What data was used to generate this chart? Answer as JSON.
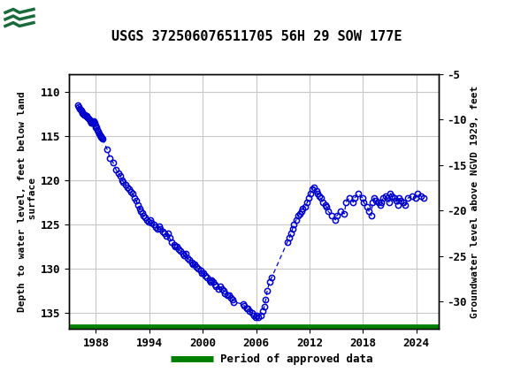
{
  "title": "USGS 372506076511705 56H 29 SOW 177E",
  "ylabel_left": "Depth to water level, feet below land\n surface",
  "ylabel_right": "Groundwater level above NGVD 1929, feet",
  "ylim_left": [
    136.8,
    108.0
  ],
  "ylim_right": [
    -33.0,
    -5.0
  ],
  "xlim": [
    1985.0,
    2026.5
  ],
  "xticks": [
    1988,
    1994,
    2000,
    2006,
    2012,
    2018,
    2024
  ],
  "yticks_left": [
    110,
    115,
    120,
    125,
    130,
    135
  ],
  "yticks_right": [
    -5,
    -10,
    -15,
    -20,
    -25,
    -30
  ],
  "background_color": "#ffffff",
  "plot_bg_color": "#ffffff",
  "grid_color": "#c8c8c8",
  "line_color": "#0000cc",
  "marker_color": "#0000cc",
  "header_color": "#1a6b3c",
  "legend_line_color": "#008000",
  "legend_text": "Period of approved data",
  "data_x": [
    1986.0,
    1986.08,
    1986.17,
    1986.25,
    1986.33,
    1986.42,
    1986.5,
    1986.58,
    1986.67,
    1986.75,
    1986.83,
    1986.92,
    1987.0,
    1987.08,
    1987.17,
    1987.25,
    1987.33,
    1987.42,
    1987.5,
    1987.58,
    1987.67,
    1987.75,
    1987.83,
    1987.92,
    1988.0,
    1988.08,
    1988.17,
    1988.25,
    1988.33,
    1988.42,
    1988.5,
    1988.58,
    1988.67,
    1988.75,
    1989.25,
    1989.58,
    1989.92,
    1990.25,
    1990.5,
    1990.75,
    1990.92,
    1991.08,
    1991.33,
    1991.5,
    1991.75,
    1991.92,
    1992.08,
    1992.33,
    1992.5,
    1992.75,
    1992.92,
    1993.0,
    1993.17,
    1993.33,
    1993.5,
    1993.75,
    1993.92,
    1994.08,
    1994.25,
    1994.5,
    1994.75,
    1994.92,
    1995.08,
    1995.25,
    1995.5,
    1995.75,
    1995.92,
    1996.08,
    1996.25,
    1996.5,
    1996.75,
    1996.92,
    1997.08,
    1997.25,
    1997.5,
    1997.75,
    1997.92,
    1998.08,
    1998.25,
    1998.5,
    1998.75,
    1998.92,
    1999.08,
    1999.25,
    1999.5,
    1999.75,
    1999.92,
    2000.08,
    2000.25,
    2000.5,
    2000.75,
    2000.92,
    2001.0,
    2001.17,
    2001.33,
    2001.5,
    2001.75,
    2002.0,
    2002.17,
    2002.33,
    2002.5,
    2002.75,
    2003.0,
    2003.17,
    2003.33,
    2003.5,
    2004.5,
    2004.67,
    2004.92,
    2005.08,
    2005.25,
    2005.5,
    2005.75,
    2005.92,
    2006.08,
    2006.25,
    2006.5,
    2006.75,
    2006.92,
    2007.08,
    2007.25,
    2007.5,
    2007.75,
    2009.5,
    2009.75,
    2009.92,
    2010.08,
    2010.25,
    2010.5,
    2010.75,
    2010.92,
    2011.08,
    2011.25,
    2011.5,
    2011.75,
    2011.92,
    2012.08,
    2012.25,
    2012.5,
    2012.75,
    2012.92,
    2013.08,
    2013.25,
    2013.5,
    2013.75,
    2013.92,
    2014.08,
    2014.5,
    2014.92,
    2015.08,
    2015.5,
    2015.92,
    2016.08,
    2016.5,
    2016.92,
    2017.08,
    2017.5,
    2017.92,
    2018.08,
    2018.5,
    2018.67,
    2018.92,
    2019.08,
    2019.25,
    2019.5,
    2019.75,
    2019.92,
    2020.08,
    2020.25,
    2020.5,
    2020.75,
    2020.92,
    2021.08,
    2021.25,
    2021.5,
    2021.75,
    2021.92,
    2022.08,
    2022.25,
    2022.5,
    2022.75,
    2023.08,
    2023.5,
    2023.92,
    2024.08,
    2024.5,
    2024.83
  ],
  "data_y": [
    111.5,
    111.7,
    111.9,
    112.0,
    112.1,
    112.3,
    112.4,
    112.5,
    112.6,
    112.6,
    112.7,
    112.7,
    112.8,
    112.9,
    113.0,
    113.1,
    113.3,
    113.4,
    113.5,
    113.5,
    113.4,
    113.3,
    113.5,
    113.8,
    114.0,
    114.0,
    114.3,
    114.5,
    114.7,
    114.9,
    115.0,
    115.1,
    115.2,
    115.3,
    116.5,
    117.5,
    118.0,
    118.8,
    119.2,
    119.5,
    120.0,
    120.2,
    120.5,
    120.8,
    121.0,
    121.3,
    121.5,
    122.0,
    122.3,
    122.8,
    123.2,
    123.5,
    123.7,
    124.0,
    124.2,
    124.5,
    124.7,
    124.5,
    124.8,
    125.0,
    125.3,
    125.5,
    125.2,
    125.5,
    125.8,
    126.0,
    126.3,
    126.0,
    126.5,
    127.0,
    127.3,
    127.5,
    127.5,
    127.8,
    128.0,
    128.3,
    128.5,
    128.3,
    128.8,
    129.0,
    129.3,
    129.5,
    129.5,
    129.8,
    130.0,
    130.2,
    130.5,
    130.5,
    130.8,
    131.0,
    131.3,
    131.5,
    131.3,
    131.5,
    131.8,
    132.0,
    132.3,
    132.0,
    132.3,
    132.5,
    132.8,
    133.0,
    133.0,
    133.3,
    133.5,
    133.8,
    134.0,
    134.2,
    134.5,
    134.5,
    134.8,
    135.0,
    135.3,
    135.5,
    135.3,
    135.5,
    135.3,
    134.8,
    134.3,
    133.5,
    132.5,
    131.5,
    131.0,
    127.0,
    126.5,
    126.0,
    125.5,
    125.0,
    124.5,
    124.0,
    123.8,
    123.5,
    123.2,
    123.0,
    122.5,
    122.0,
    121.5,
    121.0,
    120.8,
    121.2,
    121.5,
    121.8,
    122.0,
    122.5,
    122.8,
    123.0,
    123.5,
    124.0,
    124.5,
    124.0,
    123.5,
    123.8,
    122.5,
    122.0,
    122.5,
    122.0,
    121.5,
    122.0,
    122.5,
    123.0,
    123.5,
    124.0,
    122.5,
    122.0,
    122.3,
    122.5,
    122.8,
    122.5,
    122.0,
    121.8,
    122.0,
    122.5,
    121.5,
    121.8,
    122.0,
    122.3,
    122.8,
    122.0,
    122.3,
    122.5,
    122.8,
    122.0,
    121.8,
    122.0,
    121.5,
    121.8,
    122.0
  ]
}
